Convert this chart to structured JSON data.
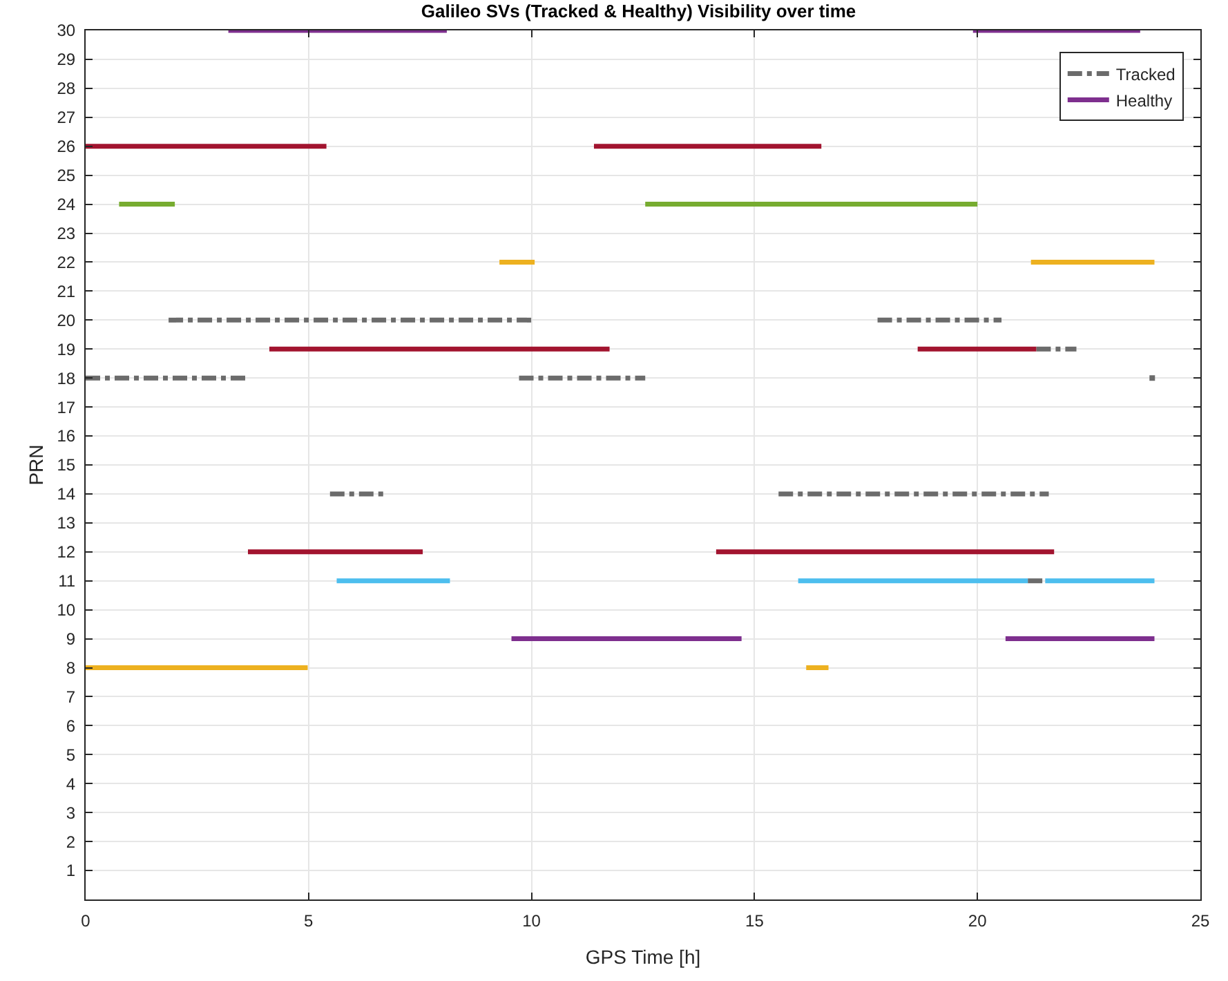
{
  "chart_data": {
    "type": "line",
    "title": "Galileo SVs (Tracked & Healthy) Visibility over time",
    "xlabel": "GPS Time [h]",
    "ylabel": "PRN",
    "xlim": [
      0,
      25
    ],
    "xticks": [
      0,
      5,
      10,
      15,
      20,
      25
    ],
    "ylim": [
      0,
      30
    ],
    "yticks": [
      1,
      2,
      3,
      4,
      5,
      6,
      7,
      8,
      9,
      10,
      11,
      12,
      13,
      14,
      15,
      16,
      17,
      18,
      19,
      20,
      21,
      22,
      23,
      24,
      25,
      26,
      27,
      28,
      29,
      30
    ],
    "grid": true,
    "legend": "top right",
    "marker": "none",
    "series": [
      {
        "name": "Tracked",
        "color": "#6b6b6b",
        "line_style": "dashed",
        "x": [
          1.86,
          10.07,
          null,
          17.76,
          20.54,
          null,
          21.32,
          22.22,
          null,
          0,
          3.68,
          null,
          9.72,
          12.55,
          null,
          5.48,
          6.78,
          null,
          15.54,
          21.6,
          null,
          21.13,
          21.52
        ],
        "values": [
          20,
          20,
          null,
          20,
          20,
          null,
          19,
          19,
          null,
          18,
          18,
          null,
          18,
          18,
          null,
          14,
          14,
          null,
          14,
          14,
          null,
          11,
          11
        ]
      },
      {
        "name": "Healthy",
        "color": "#7e2f8e",
        "line_style": "solid",
        "x": [
          3.2,
          8.1,
          null,
          19.9,
          23.65
        ],
        "values": [
          30,
          30,
          null,
          30,
          30
        ]
      },
      {
        "color": "#a2142f",
        "line_style": "solid",
        "x": [
          0,
          5.4,
          null,
          11.4,
          16.5
        ],
        "values": [
          26,
          26,
          null,
          26,
          26
        ]
      },
      {
        "color": "#77ac30",
        "line_style": "solid",
        "x": [
          0.75,
          2.0,
          null,
          12.55,
          20.0
        ],
        "values": [
          24,
          24,
          null,
          24,
          24
        ]
      },
      {
        "color": "#edb120",
        "line_style": "solid",
        "x": [
          9.28,
          10.07,
          null,
          21.2,
          23.97
        ],
        "values": [
          22,
          22,
          null,
          22,
          22
        ]
      },
      {
        "color": "#a2142f",
        "line_style": "solid",
        "x": [
          4.12,
          11.75,
          null,
          18.66,
          21.32
        ],
        "values": [
          19,
          19,
          null,
          19,
          19
        ]
      },
      {
        "color": "#a2142f",
        "line_style": "solid",
        "x": [
          3.64,
          7.56,
          null,
          14.14,
          21.72
        ],
        "values": [
          12,
          12,
          null,
          12,
          12
        ]
      },
      {
        "color": "#4dbeee",
        "line_style": "solid",
        "x": [
          5.63,
          8.17,
          null,
          15.98,
          21.13,
          null,
          21.52,
          23.97
        ],
        "values": [
          11,
          11,
          null,
          11,
          11,
          null,
          11,
          11
        ]
      },
      {
        "color": "#7e2f8e",
        "line_style": "solid",
        "x": [
          9.55,
          14.71,
          null,
          20.63,
          23.97
        ],
        "values": [
          9,
          9,
          null,
          9,
          9
        ]
      },
      {
        "color": "#edb120",
        "line_style": "solid",
        "x": [
          0,
          4.98,
          null,
          16.16,
          16.66
        ],
        "values": [
          8,
          8,
          null,
          8,
          8
        ]
      },
      {
        "type": "scatter",
        "marker": "square",
        "color": "#6b6b6b",
        "x": [
          23.92
        ],
        "values": [
          18
        ]
      }
    ]
  }
}
